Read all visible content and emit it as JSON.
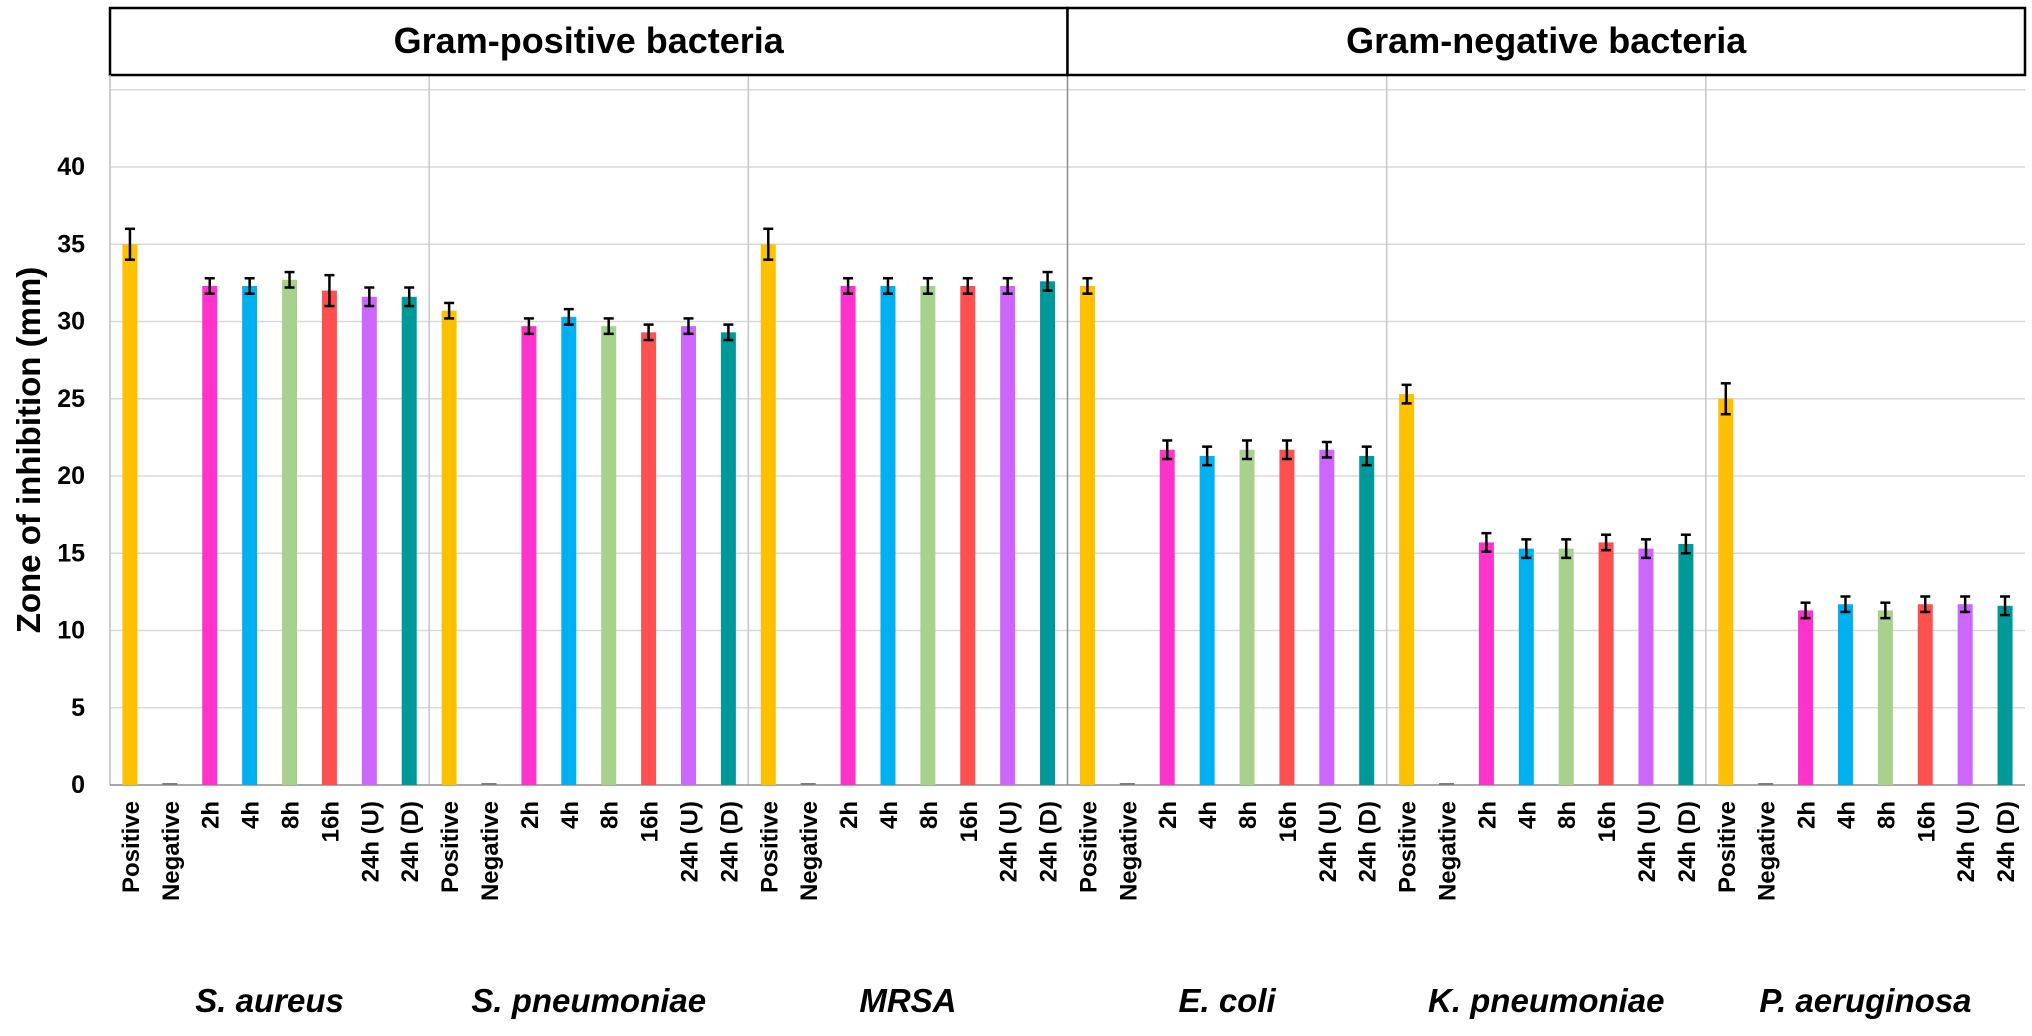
{
  "chart_data": {
    "type": "bar",
    "ylabel": "Zone of inhibition (mm)",
    "xlabel": "",
    "ylim": [
      0,
      45
    ],
    "yticks": [
      0,
      5,
      10,
      15,
      20,
      25,
      30,
      35,
      40
    ],
    "grid": true,
    "legend": "none",
    "headers": [
      {
        "label": "Gram-positive bacteria",
        "groups": [
          0,
          1,
          2
        ]
      },
      {
        "label": "Gram-negative bacteria",
        "groups": [
          3,
          4,
          5
        ]
      }
    ],
    "categories": [
      "Positive",
      "Negative",
      "2h",
      "4h",
      "8h",
      "16h",
      "24h (U)",
      "24h (D)"
    ],
    "colors": [
      "#FFC000",
      "#A6A6A6",
      "#FF33CC",
      "#00B0F0",
      "#A9D18E",
      "#FF5050",
      "#CC66FF",
      "#009999"
    ],
    "groups": [
      {
        "name": "S. aureus",
        "values": [
          35.0,
          0,
          32.3,
          32.3,
          32.7,
          32.0,
          31.6,
          31.6
        ],
        "errors": [
          1.0,
          0,
          0.5,
          0.5,
          0.5,
          1.0,
          0.6,
          0.6
        ]
      },
      {
        "name": "S. pneumoniae",
        "values": [
          30.7,
          0,
          29.7,
          30.3,
          29.7,
          29.3,
          29.7,
          29.3
        ],
        "errors": [
          0.5,
          0,
          0.5,
          0.5,
          0.5,
          0.5,
          0.5,
          0.5
        ]
      },
      {
        "name": "MRSA",
        "values": [
          35.0,
          0,
          32.3,
          32.3,
          32.3,
          32.3,
          32.3,
          32.6
        ],
        "errors": [
          1.0,
          0,
          0.5,
          0.5,
          0.5,
          0.5,
          0.5,
          0.6
        ]
      },
      {
        "name": "E. coli",
        "values": [
          32.3,
          0,
          21.7,
          21.3,
          21.7,
          21.7,
          21.7,
          21.3
        ],
        "errors": [
          0.5,
          0,
          0.6,
          0.6,
          0.6,
          0.6,
          0.5,
          0.6
        ]
      },
      {
        "name": "K. pneumoniae",
        "values": [
          25.3,
          0,
          15.7,
          15.3,
          15.3,
          15.7,
          15.3,
          15.6
        ],
        "errors": [
          0.6,
          0,
          0.6,
          0.6,
          0.6,
          0.5,
          0.6,
          0.6
        ]
      },
      {
        "name": "P. aeruginosa",
        "values": [
          25.0,
          0,
          11.3,
          11.7,
          11.3,
          11.7,
          11.7,
          11.6
        ],
        "errors": [
          1.0,
          0,
          0.5,
          0.5,
          0.5,
          0.5,
          0.5,
          0.6
        ]
      }
    ]
  }
}
